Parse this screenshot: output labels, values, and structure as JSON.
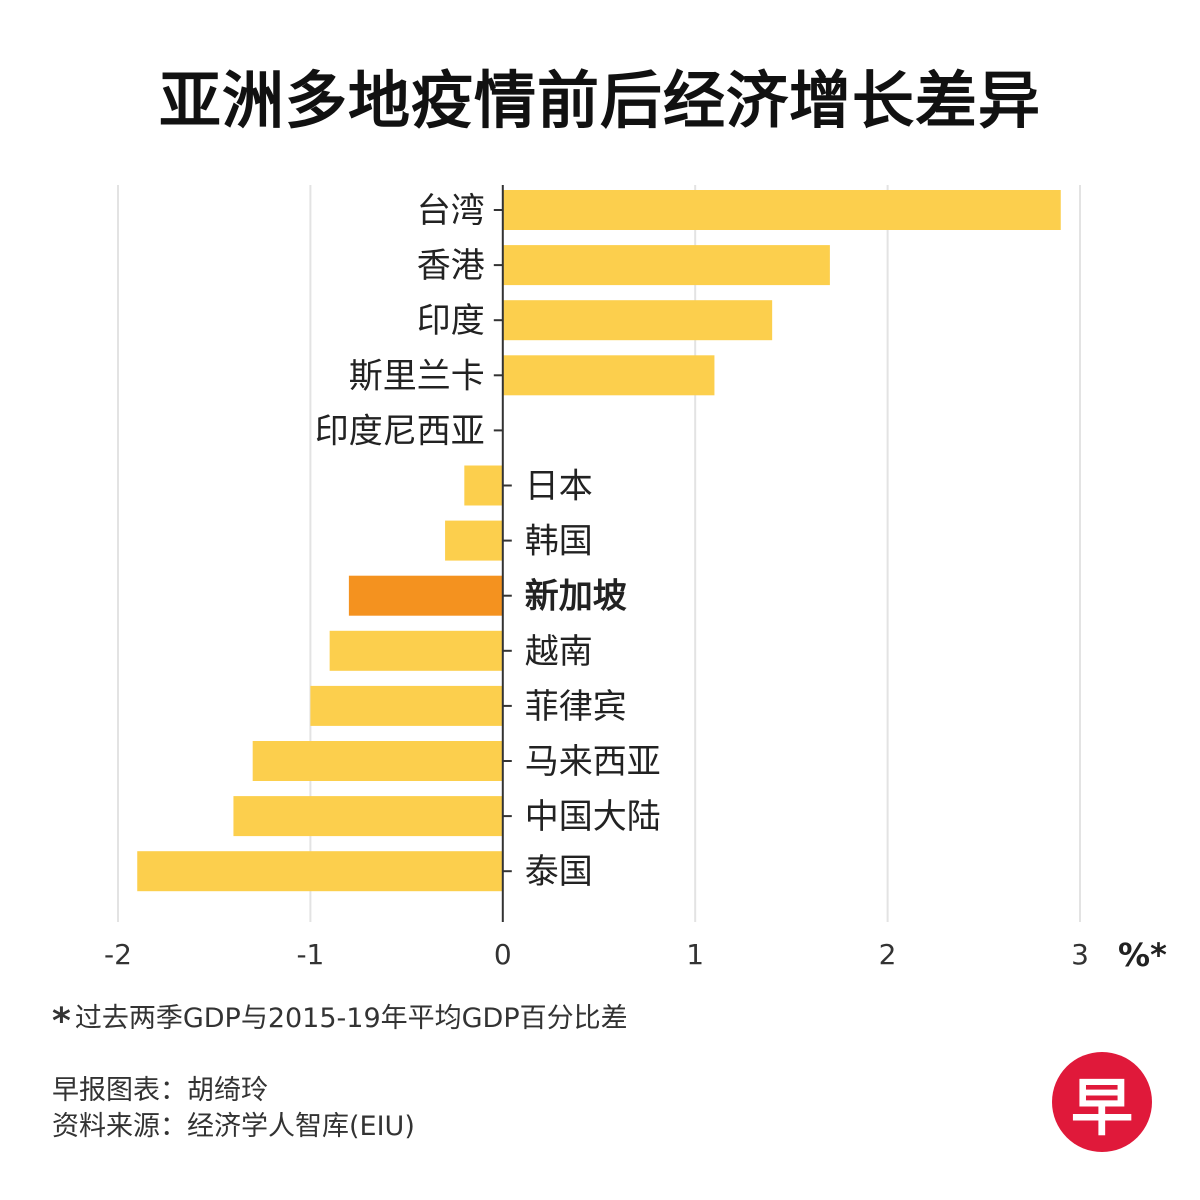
{
  "title": "亚洲多地疫情前后经济增长差异",
  "chart_data": {
    "type": "bar",
    "orientation": "horizontal",
    "title": "亚洲多地疫情前后经济增长差异",
    "categories": [
      "台湾",
      "香港",
      "印度",
      "斯里兰卡",
      "印度尼西亚",
      "日本",
      "韩国",
      "新加坡",
      "越南",
      "菲律宾",
      "马来西亚",
      "中国大陆",
      "泰国"
    ],
    "values": [
      2.9,
      1.7,
      1.4,
      1.1,
      0.0,
      -0.2,
      -0.3,
      -0.8,
      -0.9,
      -1.0,
      -1.3,
      -1.4,
      -1.9
    ],
    "highlight": "新加坡",
    "xlim": [
      -2,
      3
    ],
    "xticks": [
      -2,
      -1,
      0,
      1,
      2,
      3
    ],
    "xticklabels": [
      "-2",
      "-1",
      "0",
      "1",
      "2",
      "3"
    ],
    "unit_label": "%*",
    "grid": true,
    "colors": {
      "bar": "#fccf4d",
      "highlight": "#f4921f",
      "grid": "#e3e3e3",
      "axis": "#333333"
    }
  },
  "footnote": {
    "mark": "*",
    "text": "过去两季GDP与2015-19年平均GDP百分比差"
  },
  "credits": {
    "chart": "早报图表：胡绮玲",
    "source": "资料来源：经济学人智库(EIU)"
  },
  "logo": {
    "text": "早",
    "color": "#e0193a"
  }
}
